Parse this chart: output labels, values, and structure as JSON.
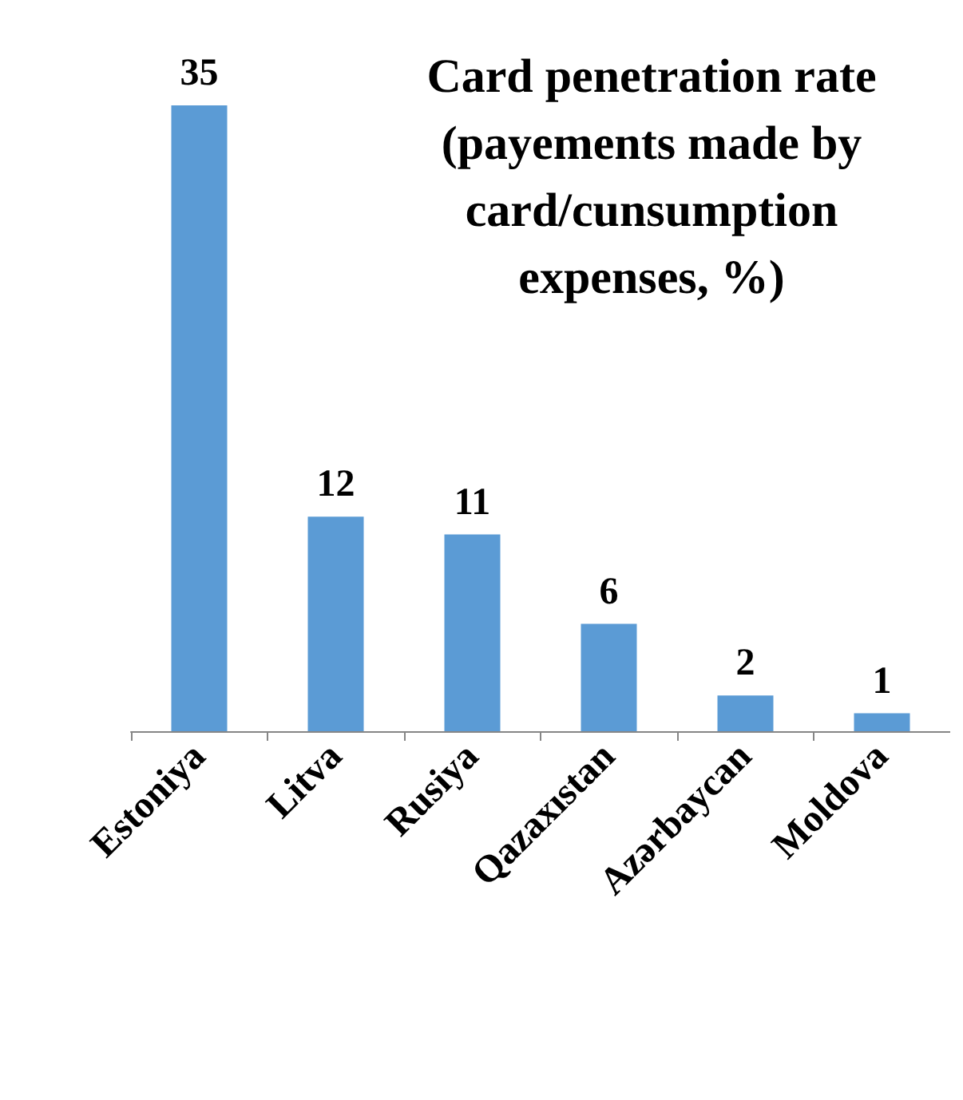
{
  "chart_data": {
    "type": "bar",
    "title": "Card penetration rate\n(payements made by\ncard/cunsumption\nexpenses, %)",
    "categories": [
      "Estoniya",
      "Litva",
      "Rusiya",
      "Qazaxıstan",
      "Azərbaycan",
      "Moldova"
    ],
    "values": [
      35,
      12,
      11,
      6,
      2,
      1
    ],
    "color": "#5b9bd5",
    "data_labels": true
  }
}
